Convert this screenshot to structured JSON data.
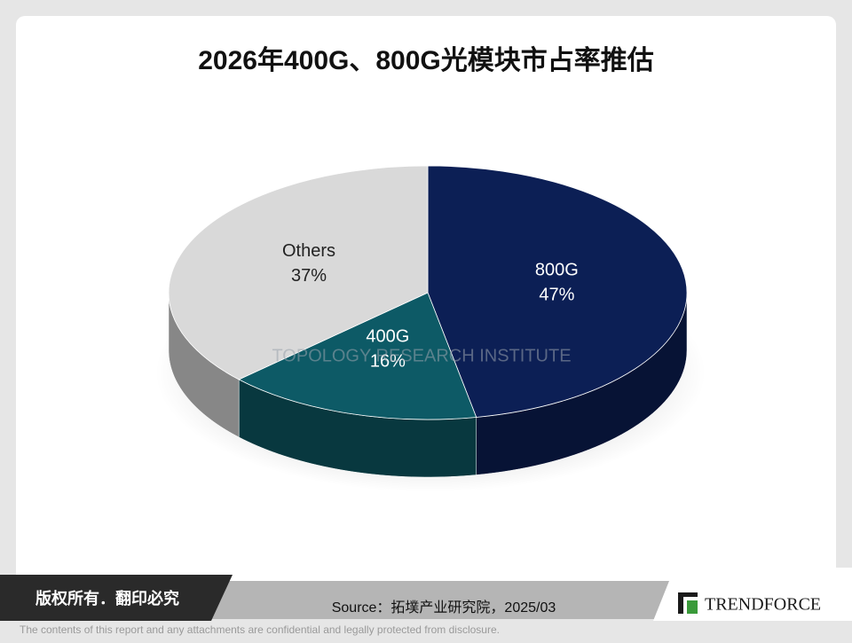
{
  "chart_data": {
    "type": "pie",
    "title": "2026年400G、800G光模块市占率推估",
    "categories": [
      "800G",
      "400G",
      "Others"
    ],
    "values": [
      47,
      16,
      37
    ],
    "value_labels": [
      "47%",
      "16%",
      "37%"
    ],
    "colors": [
      "#0c1f55",
      "#0d5a66",
      "#d9d9d9"
    ]
  },
  "footer": {
    "copyright": "版权所有．翻印必究",
    "source": "Source：拓墣产业研究院，2025/03",
    "logo": "TRENDFORCE",
    "disclaimer": "The contents of this report and any attachments are confidential and legally protected from disclosure."
  }
}
